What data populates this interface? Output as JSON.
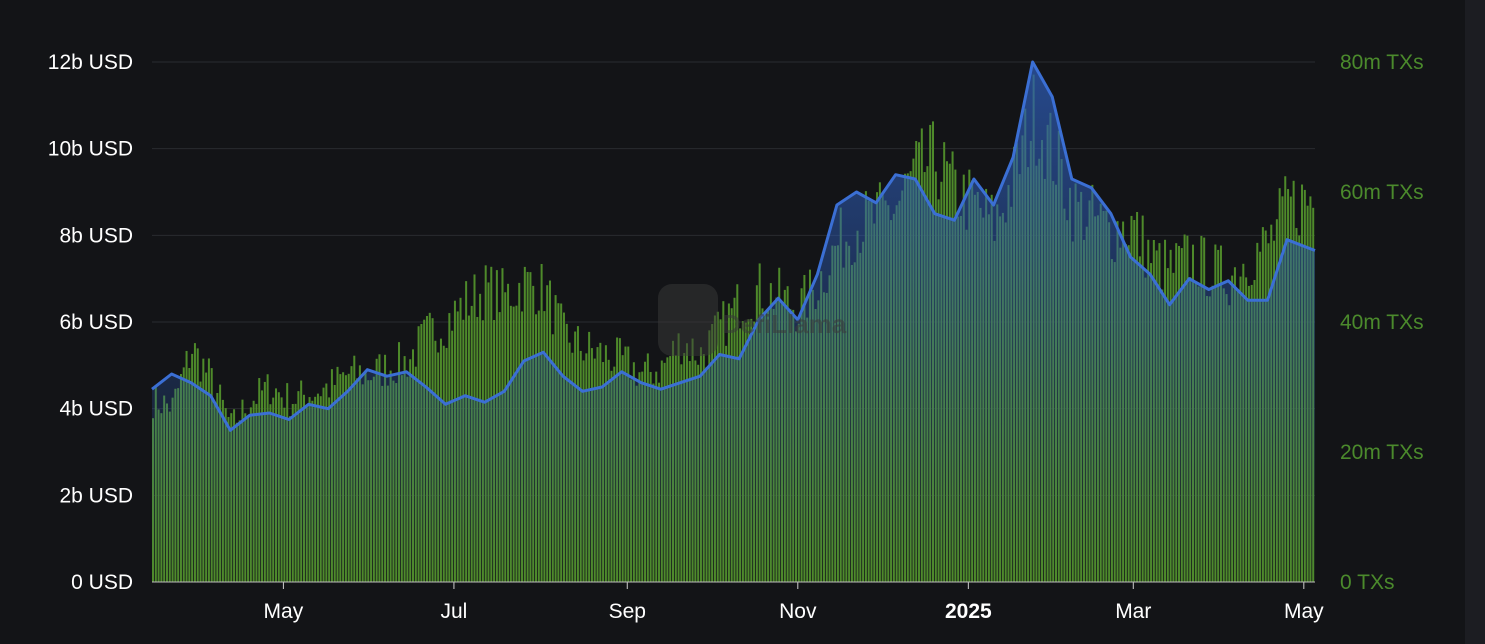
{
  "chart_data": {
    "type": "bar+line",
    "colors": {
      "background": "#131417",
      "bars": "#4e8a2a",
      "line": "#3b6fd4",
      "left_axis_text": "#ffffff",
      "right_axis_text": "#4b8a2c",
      "grid": "#2a2b30"
    },
    "x_axis": {
      "range": [
        "2024-03-15",
        "2025-05-05"
      ],
      "ticks": [
        {
          "date": "2024-05-01",
          "label": "May",
          "bold": false
        },
        {
          "date": "2024-07-01",
          "label": "Jul",
          "bold": false
        },
        {
          "date": "2024-09-01",
          "label": "Sep",
          "bold": false
        },
        {
          "date": "2024-11-01",
          "label": "Nov",
          "bold": false
        },
        {
          "date": "2025-01-01",
          "label": "2025",
          "bold": true
        },
        {
          "date": "2025-03-01",
          "label": "Mar",
          "bold": false
        },
        {
          "date": "2025-05-01",
          "label": "May",
          "bold": false
        }
      ]
    },
    "y_left": {
      "min": 0,
      "max": 12000000000,
      "ticks": [
        {
          "value": 0,
          "label": "0 USD"
        },
        {
          "value": 2000000000,
          "label": "2b USD"
        },
        {
          "value": 4000000000,
          "label": "4b USD"
        },
        {
          "value": 6000000000,
          "label": "6b USD"
        },
        {
          "value": 8000000000,
          "label": "8b USD"
        },
        {
          "value": 10000000000,
          "label": "10b USD"
        },
        {
          "value": 12000000000,
          "label": "12b USD"
        }
      ]
    },
    "y_right": {
      "min": 0,
      "max": 80000000,
      "ticks": [
        {
          "value": 0,
          "label": "0 TXs"
        },
        {
          "value": 20000000,
          "label": "20m TXs"
        },
        {
          "value": 40000000,
          "label": "40m TXs"
        },
        {
          "value": 60000000,
          "label": "60m TXs"
        },
        {
          "value": 80000000,
          "label": "80m TXs"
        }
      ]
    },
    "line_series": {
      "axis": "left",
      "points": [
        [
          "2024-03-15",
          4450000000.0
        ],
        [
          "2024-03-22",
          4800000000.0
        ],
        [
          "2024-03-29",
          4600000000.0
        ],
        [
          "2024-04-05",
          4300000000.0
        ],
        [
          "2024-04-12",
          3500000000.0
        ],
        [
          "2024-04-19",
          3850000000.0
        ],
        [
          "2024-04-26",
          3900000000.0
        ],
        [
          "2024-05-03",
          3750000000.0
        ],
        [
          "2024-05-10",
          4100000000.0
        ],
        [
          "2024-05-17",
          4000000000.0
        ],
        [
          "2024-05-24",
          4400000000.0
        ],
        [
          "2024-05-31",
          4900000000.0
        ],
        [
          "2024-06-07",
          4750000000.0
        ],
        [
          "2024-06-14",
          4850000000.0
        ],
        [
          "2024-06-21",
          4500000000.0
        ],
        [
          "2024-06-28",
          4100000000.0
        ],
        [
          "2024-07-05",
          4300000000.0
        ],
        [
          "2024-07-12",
          4150000000.0
        ],
        [
          "2024-07-19",
          4400000000.0
        ],
        [
          "2024-07-26",
          5100000000.0
        ],
        [
          "2024-08-02",
          5300000000.0
        ],
        [
          "2024-08-09",
          4750000000.0
        ],
        [
          "2024-08-16",
          4400000000.0
        ],
        [
          "2024-08-23",
          4500000000.0
        ],
        [
          "2024-08-30",
          4850000000.0
        ],
        [
          "2024-09-06",
          4600000000.0
        ],
        [
          "2024-09-13",
          4450000000.0
        ],
        [
          "2024-09-20",
          4600000000.0
        ],
        [
          "2024-09-27",
          4750000000.0
        ],
        [
          "2024-10-04",
          5250000000.0
        ],
        [
          "2024-10-11",
          5150000000.0
        ],
        [
          "2024-10-18",
          6050000000.0
        ],
        [
          "2024-10-25",
          6550000000.0
        ],
        [
          "2024-11-01",
          6050000000.0
        ],
        [
          "2024-11-08",
          7100000000.0
        ],
        [
          "2024-11-15",
          8700000000.0
        ],
        [
          "2024-11-22",
          9000000000.0
        ],
        [
          "2024-11-29",
          8750000000.0
        ],
        [
          "2024-12-06",
          9400000000.0
        ],
        [
          "2024-12-13",
          9300000000.0
        ],
        [
          "2024-12-20",
          8500000000.0
        ],
        [
          "2024-12-27",
          8350000000.0
        ],
        [
          "2025-01-03",
          9300000000.0
        ],
        [
          "2025-01-10",
          8700000000.0
        ],
        [
          "2025-01-17",
          9800000000.0
        ],
        [
          "2025-01-24",
          12000000000.0
        ],
        [
          "2025-01-31",
          11200000000.0
        ],
        [
          "2025-02-07",
          9300000000.0
        ],
        [
          "2025-02-14",
          9100000000.0
        ],
        [
          "2025-02-21",
          8500000000.0
        ],
        [
          "2025-02-28",
          7500000000.0
        ],
        [
          "2025-03-07",
          7100000000.0
        ],
        [
          "2025-03-14",
          6400000000.0
        ],
        [
          "2025-03-21",
          7000000000.0
        ],
        [
          "2025-03-28",
          6750000000.0
        ],
        [
          "2025-04-04",
          6950000000.0
        ],
        [
          "2025-04-11",
          6500000000.0
        ],
        [
          "2025-04-18",
          6500000000.0
        ],
        [
          "2025-04-25",
          7900000000.0
        ],
        [
          "2025-05-05",
          7650000000.0
        ]
      ]
    },
    "bar_series": {
      "axis": "right",
      "points": [
        [
          "2024-03-15",
          28000000.0
        ],
        [
          "2024-03-22",
          27000000.0
        ],
        [
          "2024-03-29",
          36000000.0
        ],
        [
          "2024-04-05",
          31000000.0
        ],
        [
          "2024-04-12",
          24000000.0
        ],
        [
          "2024-04-19",
          28000000.0
        ],
        [
          "2024-04-26",
          30000000.0
        ],
        [
          "2024-05-03",
          28000000.0
        ],
        [
          "2024-05-10",
          29000000.0
        ],
        [
          "2024-05-17",
          30000000.0
        ],
        [
          "2024-05-24",
          32000000.0
        ],
        [
          "2024-05-31",
          32000000.0
        ],
        [
          "2024-06-07",
          33000000.0
        ],
        [
          "2024-06-14",
          34000000.0
        ],
        [
          "2024-06-21",
          38000000.0
        ],
        [
          "2024-06-28",
          40000000.0
        ],
        [
          "2024-07-05",
          43000000.0
        ],
        [
          "2024-07-12",
          45000000.0
        ],
        [
          "2024-07-19",
          44000000.0
        ],
        [
          "2024-07-26",
          46000000.0
        ],
        [
          "2024-08-02",
          45000000.0
        ],
        [
          "2024-08-09",
          38000000.0
        ],
        [
          "2024-08-16",
          36000000.0
        ],
        [
          "2024-08-23",
          35000000.0
        ],
        [
          "2024-08-30",
          34000000.0
        ],
        [
          "2024-09-06",
          32000000.0
        ],
        [
          "2024-09-13",
          33000000.0
        ],
        [
          "2024-09-20",
          37000000.0
        ],
        [
          "2024-09-27",
          35000000.0
        ],
        [
          "2024-10-04",
          39000000.0
        ],
        [
          "2024-10-11",
          43000000.0
        ],
        [
          "2024-10-18",
          45000000.0
        ],
        [
          "2024-10-25",
          44000000.0
        ],
        [
          "2024-11-01",
          42000000.0
        ],
        [
          "2024-11-08",
          46000000.0
        ],
        [
          "2024-11-15",
          52000000.0
        ],
        [
          "2024-11-22",
          55000000.0
        ],
        [
          "2024-11-29",
          56000000.0
        ],
        [
          "2024-12-06",
          58000000.0
        ],
        [
          "2024-12-13",
          63000000.0
        ],
        [
          "2024-12-20",
          65000000.0
        ],
        [
          "2024-12-27",
          60000000.0
        ],
        [
          "2025-01-03",
          58000000.0
        ],
        [
          "2025-01-10",
          55000000.0
        ],
        [
          "2025-01-17",
          62000000.0
        ],
        [
          "2025-01-24",
          72000000.0
        ],
        [
          "2025-01-31",
          66000000.0
        ],
        [
          "2025-02-07",
          58000000.0
        ],
        [
          "2025-02-14",
          56000000.0
        ],
        [
          "2025-02-21",
          54000000.0
        ],
        [
          "2025-02-28",
          55000000.0
        ],
        [
          "2025-03-07",
          50000000.0
        ],
        [
          "2025-03-14",
          48000000.0
        ],
        [
          "2025-03-21",
          50000000.0
        ],
        [
          "2025-03-28",
          48000000.0
        ],
        [
          "2025-04-04",
          47000000.0
        ],
        [
          "2025-04-11",
          50000000.0
        ],
        [
          "2025-04-18",
          52000000.0
        ],
        [
          "2025-04-25",
          58000000.0
        ],
        [
          "2025-05-05",
          59000000.0
        ]
      ]
    }
  }
}
